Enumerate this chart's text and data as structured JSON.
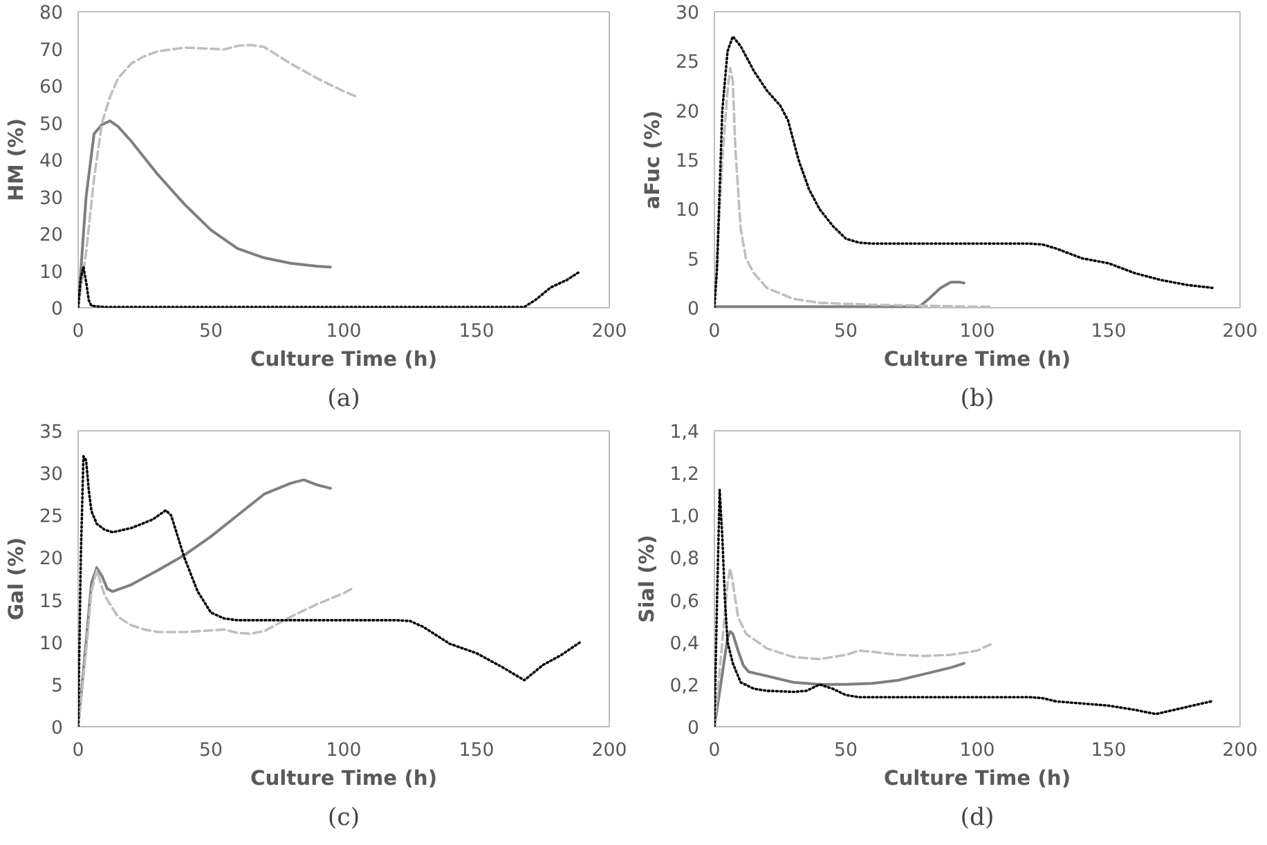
{
  "chart_data": [
    {
      "type": "line",
      "xlabel": "Culture Time (h)",
      "ylabel": "HM (%)",
      "xlim": [
        0,
        200
      ],
      "xticks": [
        0,
        50,
        100,
        150,
        200
      ],
      "ylim": [
        0,
        80
      ],
      "yticks": [
        0,
        10,
        20,
        30,
        40,
        50,
        60,
        70,
        80
      ],
      "annotations": [
        "(a)"
      ],
      "series": [
        {
          "color": "#7f7f7f",
          "line_style": "solid",
          "x": [
            0,
            1,
            3,
            6,
            9,
            12,
            15,
            20,
            30,
            40,
            50,
            60,
            70,
            80,
            90,
            95
          ],
          "values": [
            0,
            10,
            30,
            47,
            49.5,
            50.5,
            49,
            45,
            36,
            28,
            21,
            16,
            13.5,
            12,
            11.2,
            11
          ]
        },
        {
          "color": "#bfbfbf",
          "line_style": "dashed",
          "x": [
            0,
            3,
            6,
            9,
            12,
            15,
            20,
            25,
            30,
            40,
            50,
            55,
            60,
            65,
            70,
            80,
            90,
            100,
            105
          ],
          "values": [
            0,
            15,
            35,
            50,
            57,
            62,
            66,
            68,
            69.3,
            70.3,
            70,
            69.8,
            70.8,
            71,
            70.5,
            66,
            62,
            58.5,
            57
          ]
        },
        {
          "color": "#000000",
          "line_style": "dotted",
          "x": [
            0,
            1,
            2,
            3,
            4,
            5,
            10,
            50,
            100,
            150,
            168,
            172,
            178,
            184,
            189
          ],
          "values": [
            0,
            8,
            11,
            7,
            2,
            0.5,
            0.2,
            0.2,
            0.2,
            0.2,
            0.2,
            2,
            5.5,
            7.5,
            9.8
          ]
        }
      ]
    },
    {
      "type": "line",
      "xlabel": "Culture Time (h)",
      "ylabel": "aFuc (%)",
      "xlim": [
        0,
        200
      ],
      "xticks": [
        0,
        50,
        100,
        150,
        200
      ],
      "ylim": [
        0,
        30
      ],
      "yticks": [
        0,
        5,
        10,
        15,
        20,
        25,
        30
      ],
      "annotations": [
        "(b)"
      ],
      "series": [
        {
          "color": "#7f7f7f",
          "line_style": "solid",
          "x": [
            0,
            20,
            40,
            60,
            78,
            82,
            86,
            90,
            93,
            95
          ],
          "values": [
            0.1,
            0.1,
            0.1,
            0.1,
            0.1,
            1,
            2,
            2.6,
            2.6,
            2.5
          ]
        },
        {
          "color": "#bfbfbf",
          "line_style": "dashed",
          "x": [
            0,
            3,
            5,
            6,
            7,
            8,
            10,
            12,
            15,
            20,
            30,
            40,
            50,
            60,
            80,
            100,
            105
          ],
          "values": [
            0,
            15,
            22,
            24.3,
            23,
            16,
            8,
            5,
            3.5,
            2,
            0.9,
            0.5,
            0.4,
            0.3,
            0.2,
            0.1,
            0.1
          ]
        },
        {
          "color": "#000000",
          "line_style": "dotted",
          "x": [
            0,
            1,
            2,
            3,
            5,
            7,
            10,
            15,
            20,
            25,
            28,
            32,
            36,
            40,
            45,
            50,
            55,
            60,
            80,
            100,
            120,
            125,
            130,
            140,
            150,
            160,
            170,
            180,
            190
          ],
          "values": [
            0,
            4,
            12,
            20,
            26,
            27.5,
            26.5,
            24,
            22,
            20.5,
            19,
            15,
            12,
            10,
            8.3,
            7,
            6.6,
            6.5,
            6.5,
            6.5,
            6.5,
            6.4,
            6,
            5,
            4.5,
            3.5,
            2.8,
            2.3,
            2
          ]
        }
      ]
    },
    {
      "type": "line",
      "xlabel": "Culture Time (h)",
      "ylabel": "Gal (%)",
      "xlim": [
        0,
        200
      ],
      "xticks": [
        0,
        50,
        100,
        150,
        200
      ],
      "ylim": [
        0,
        35
      ],
      "yticks": [
        0,
        5,
        10,
        15,
        20,
        25,
        30,
        35
      ],
      "annotations": [
        "(c)"
      ],
      "series": [
        {
          "color": "#7f7f7f",
          "line_style": "solid",
          "x": [
            0,
            3,
            5,
            7,
            9,
            11,
            13,
            20,
            30,
            40,
            50,
            60,
            70,
            80,
            85,
            90,
            95
          ],
          "values": [
            0,
            10,
            17,
            18.8,
            17.8,
            16.3,
            16,
            16.8,
            18.5,
            20.3,
            22.5,
            25,
            27.5,
            28.8,
            29.2,
            28.6,
            28.2
          ]
        },
        {
          "color": "#bfbfbf",
          "line_style": "dashed",
          "x": [
            0,
            3,
            5,
            7,
            10,
            15,
            20,
            25,
            30,
            40,
            50,
            55,
            60,
            65,
            70,
            80,
            90,
            100,
            104
          ],
          "values": [
            0,
            9,
            16,
            18.5,
            15.5,
            13,
            12,
            11.5,
            11.2,
            11.2,
            11.4,
            11.5,
            11.1,
            11,
            11.3,
            13,
            14.5,
            15.8,
            16.5
          ]
        },
        {
          "color": "#000000",
          "line_style": "dotted",
          "x": [
            0,
            1,
            2,
            3,
            4,
            5,
            7,
            10,
            13,
            20,
            28,
            33,
            35,
            40,
            45,
            50,
            55,
            60,
            80,
            100,
            120,
            125,
            130,
            140,
            150,
            160,
            168,
            175,
            182,
            189
          ],
          "values": [
            0,
            20,
            32,
            31.5,
            28,
            25.5,
            24,
            23.3,
            23,
            23.5,
            24.5,
            25.6,
            25,
            20,
            16,
            13.5,
            12.8,
            12.6,
            12.6,
            12.6,
            12.6,
            12.5,
            11.8,
            9.8,
            8.7,
            7,
            5.5,
            7.3,
            8.5,
            10
          ]
        }
      ]
    },
    {
      "type": "line",
      "xlabel": "Culture Time (h)",
      "ylabel": "Sial (%)",
      "xlim": [
        0,
        200
      ],
      "xticks": [
        0,
        50,
        100,
        150,
        200
      ],
      "ylim": [
        0,
        1.4
      ],
      "yticks": [
        0,
        {
          "value": 0.2,
          "label": "0,2"
        },
        {
          "value": 0.4,
          "label": "0,4"
        },
        {
          "value": 0.6,
          "label": "0,6"
        },
        {
          "value": 0.8,
          "label": "0,8"
        },
        {
          "value": 1.0,
          "label": "1,0"
        },
        {
          "value": 1.2,
          "label": "1,2"
        },
        {
          "value": 1.4,
          "label": "1,4"
        }
      ],
      "annotations": [
        "(d)"
      ],
      "series": [
        {
          "color": "#7f7f7f",
          "line_style": "solid",
          "x": [
            0,
            3,
            5,
            6,
            7,
            9,
            11,
            13,
            20,
            30,
            40,
            50,
            60,
            70,
            80,
            90,
            95
          ],
          "values": [
            0,
            0.25,
            0.42,
            0.45,
            0.44,
            0.36,
            0.29,
            0.26,
            0.24,
            0.21,
            0.2,
            0.2,
            0.205,
            0.22,
            0.25,
            0.28,
            0.3
          ]
        },
        {
          "color": "#bfbfbf",
          "line_style": "dashed",
          "x": [
            0,
            3,
            5,
            6,
            7,
            9,
            12,
            20,
            30,
            40,
            50,
            55,
            60,
            70,
            80,
            90,
            100,
            105
          ],
          "values": [
            0,
            0.4,
            0.68,
            0.75,
            0.68,
            0.52,
            0.44,
            0.37,
            0.33,
            0.32,
            0.34,
            0.36,
            0.355,
            0.34,
            0.335,
            0.34,
            0.36,
            0.39
          ]
        },
        {
          "color": "#000000",
          "line_style": "dotted",
          "x": [
            0,
            1,
            2,
            3,
            4,
            5,
            7,
            10,
            15,
            20,
            30,
            35,
            40,
            45,
            50,
            55,
            60,
            80,
            100,
            120,
            125,
            130,
            150,
            160,
            168,
            175,
            182,
            189
          ],
          "values": [
            0,
            0.6,
            1.12,
            0.9,
            0.6,
            0.4,
            0.3,
            0.21,
            0.18,
            0.17,
            0.165,
            0.17,
            0.2,
            0.18,
            0.15,
            0.14,
            0.14,
            0.14,
            0.14,
            0.14,
            0.135,
            0.12,
            0.1,
            0.08,
            0.06,
            0.08,
            0.1,
            0.12
          ]
        }
      ]
    }
  ]
}
